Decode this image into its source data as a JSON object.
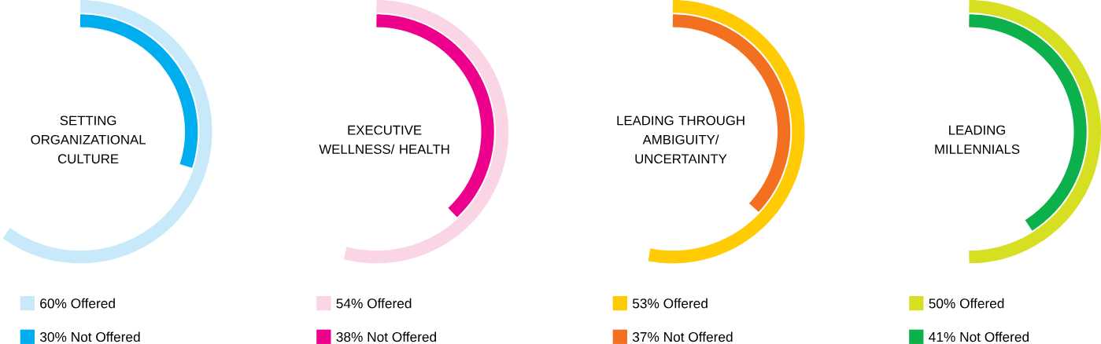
{
  "chart_data": [
    {
      "type": "other",
      "title": "SETTING ORGANIZATIONAL CULTURE",
      "categories": [
        "Offered",
        "Not Offered"
      ],
      "values": [
        60,
        30
      ],
      "value_labels": [
        "60%",
        "30%"
      ],
      "colors": [
        "#c8e9f9",
        "#00aeef"
      ]
    },
    {
      "type": "other",
      "title": "EXECUTIVE WELLNESS/ HEALTH",
      "categories": [
        "Offered",
        "Not Offered"
      ],
      "values": [
        54,
        38
      ],
      "value_labels": [
        "54%",
        "38%"
      ],
      "colors": [
        "#f9d5e5",
        "#ec008c"
      ]
    },
    {
      "type": "other",
      "title": "LEADING THROUGH AMBIGUITY/ UNCERTAINTY",
      "categories": [
        "Offered",
        "Not Offered"
      ],
      "values": [
        53,
        37
      ],
      "value_labels": [
        "53%",
        "37%"
      ],
      "colors": [
        "#ffcb05",
        "#f37021"
      ]
    },
    {
      "type": "other",
      "title": "LEADING MILLENNIALS",
      "categories": [
        "Offered",
        "Not Offered"
      ],
      "values": [
        50,
        41
      ],
      "value_labels": [
        "50%",
        "41%"
      ],
      "colors": [
        "#d7df23",
        "#0db14b"
      ]
    }
  ]
}
